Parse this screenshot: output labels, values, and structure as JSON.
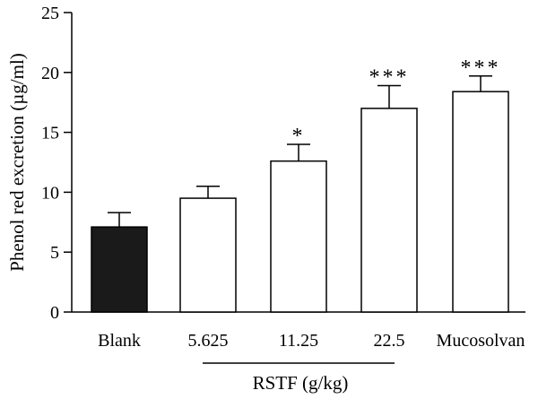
{
  "chart_data": {
    "type": "bar",
    "title": "",
    "xlabel": "",
    "ylabel": "Phenol red excretion (µg/ml)",
    "ylim": [
      0,
      25
    ],
    "yticks": [
      0,
      5,
      10,
      15,
      20,
      25
    ],
    "grid": false,
    "error_bars": true,
    "categories": [
      "Blank",
      "5.625",
      "11.25",
      "22.5",
      "Mucosolvan"
    ],
    "values": [
      7.1,
      9.5,
      12.6,
      17.0,
      18.4
    ],
    "errors": [
      1.2,
      1.0,
      1.4,
      1.9,
      1.3
    ],
    "bar_fills": [
      "#1a1a1a",
      "#ffffff",
      "#ffffff",
      "#ffffff",
      "#ffffff"
    ],
    "significance": [
      "",
      "",
      "*",
      "***",
      "***"
    ],
    "group_label": {
      "text": "RSTF (g/kg)",
      "category_span": [
        "5.625",
        "22.5"
      ]
    }
  }
}
